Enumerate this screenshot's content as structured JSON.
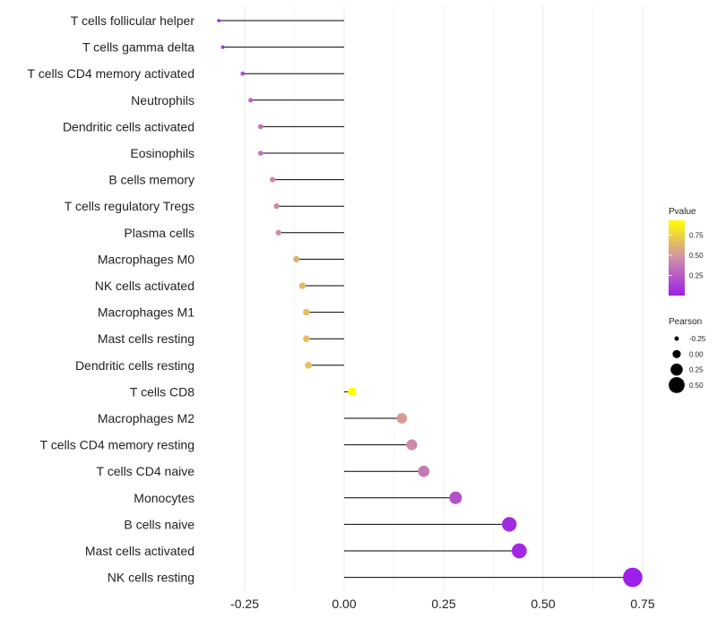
{
  "chart_data": {
    "type": "lollipop",
    "title": "",
    "xlabel": "",
    "ylabel": "",
    "xlim": [
      -0.35,
      0.77
    ],
    "xticks": [
      -0.25,
      0.0,
      0.25,
      0.5,
      0.75
    ],
    "xtick_labels": [
      "-0.25",
      "0.00",
      "0.25",
      "0.50",
      "0.75"
    ],
    "grid": "vertical",
    "points": [
      {
        "label": "T cells follicular helper",
        "pearson": -0.315,
        "pvalue": 0.06
      },
      {
        "label": "T cells gamma delta",
        "pearson": -0.305,
        "pvalue": 0.08
      },
      {
        "label": "T cells CD4 memory activated",
        "pearson": -0.255,
        "pvalue": 0.2
      },
      {
        "label": "Neutrophils",
        "pearson": -0.235,
        "pvalue": 0.28
      },
      {
        "label": "Dendritic cells activated",
        "pearson": -0.21,
        "pvalue": 0.34
      },
      {
        "label": "Eosinophils",
        "pearson": -0.21,
        "pvalue": 0.34
      },
      {
        "label": "B cells memory",
        "pearson": -0.18,
        "pvalue": 0.42
      },
      {
        "label": "T cells regulatory  Tregs",
        "pearson": -0.17,
        "pvalue": 0.44
      },
      {
        "label": "Plasma cells",
        "pearson": -0.165,
        "pvalue": 0.46
      },
      {
        "label": "Macrophages M0",
        "pearson": -0.12,
        "pvalue": 0.6
      },
      {
        "label": "NK cells activated",
        "pearson": -0.105,
        "pvalue": 0.64
      },
      {
        "label": "Macrophages M1",
        "pearson": -0.095,
        "pvalue": 0.67
      },
      {
        "label": "Mast cells resting",
        "pearson": -0.095,
        "pvalue": 0.67
      },
      {
        "label": "Dendritic cells resting",
        "pearson": -0.09,
        "pvalue": 0.68
      },
      {
        "label": "T cells CD8",
        "pearson": 0.02,
        "pvalue": 0.93
      },
      {
        "label": "Macrophages M2",
        "pearson": 0.145,
        "pvalue": 0.52
      },
      {
        "label": "T cells CD4 memory resting",
        "pearson": 0.17,
        "pvalue": 0.45
      },
      {
        "label": "T cells CD4 naive",
        "pearson": 0.2,
        "pvalue": 0.38
      },
      {
        "label": "Monocytes",
        "pearson": 0.28,
        "pvalue": 0.2
      },
      {
        "label": "B cells naive",
        "pearson": 0.415,
        "pvalue": 0.05
      },
      {
        "label": "Mast cells activated",
        "pearson": 0.44,
        "pvalue": 0.04
      },
      {
        "label": "NK cells resting",
        "pearson": 0.725,
        "pvalue": 0.001
      }
    ],
    "legend": {
      "color_title": "Pvalue",
      "color_range": [
        0.0,
        0.93
      ],
      "color_ticks": [
        0.25,
        0.5,
        0.75
      ],
      "color_tick_labels": [
        "0.25",
        "0.50",
        "0.75"
      ],
      "colors": [
        "#9b1fe8",
        "#d08fa8",
        "#ffff00"
      ],
      "size_title": "Pearson",
      "size_values": [
        -0.25,
        0.0,
        0.25,
        0.5
      ],
      "size_labels": [
        "-0.25",
        "0.00",
        "0.25",
        "0.50"
      ],
      "placement": "right"
    }
  }
}
